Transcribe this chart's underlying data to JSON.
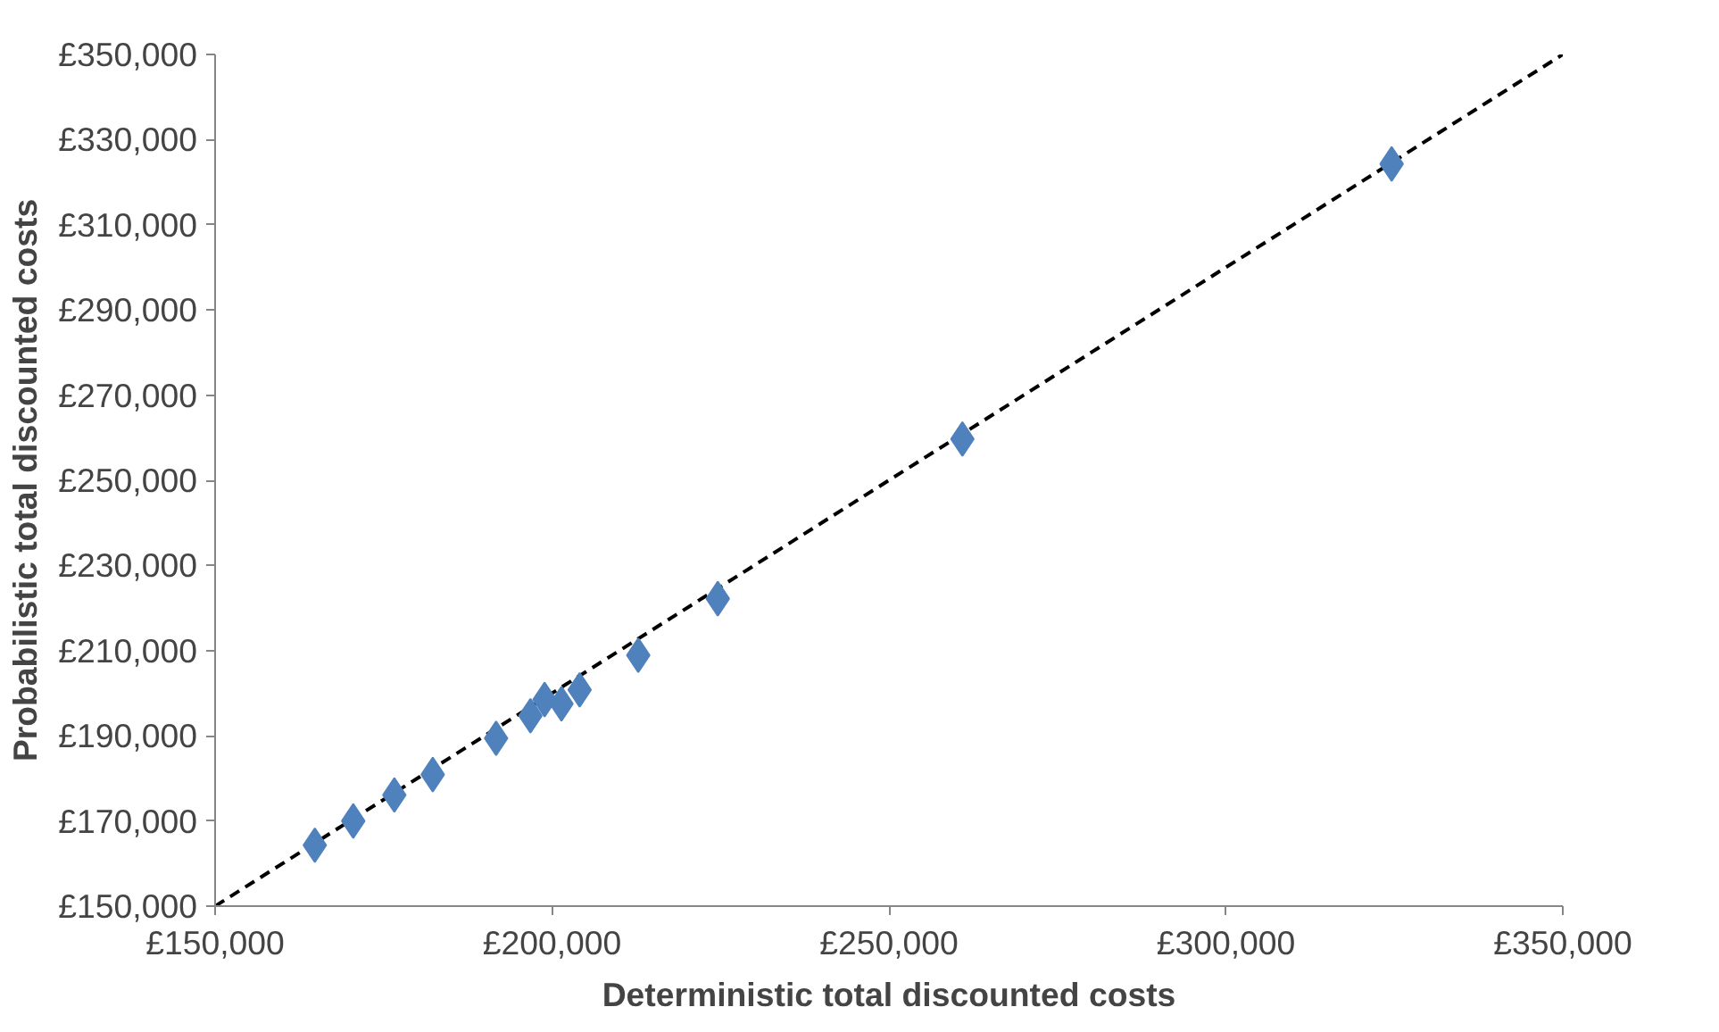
{
  "chart_data": {
    "type": "scatter",
    "xlabel": "Deterministic total discounted costs",
    "ylabel": "Probabilistic total discounted costs",
    "marker": "diamond",
    "grid": false,
    "xlim": [
      150000,
      350000
    ],
    "ylim": [
      150000,
      350000
    ],
    "xticks": [
      {
        "value": 150000,
        "label": "£150,000"
      },
      {
        "value": 200000,
        "label": "£200,000"
      },
      {
        "value": 250000,
        "label": "£250,000"
      },
      {
        "value": 300000,
        "label": "£300,000"
      },
      {
        "value": 350000,
        "label": "£350,000"
      }
    ],
    "yticks": [
      {
        "value": 150000,
        "label": "£150,000"
      },
      {
        "value": 170000,
        "label": "£170,000"
      },
      {
        "value": 190000,
        "label": "£190,000"
      },
      {
        "value": 210000,
        "label": "£210,000"
      },
      {
        "value": 230000,
        "label": "£230,000"
      },
      {
        "value": 250000,
        "label": "£250,000"
      },
      {
        "value": 270000,
        "label": "£270,000"
      },
      {
        "value": 290000,
        "label": "£290,000"
      },
      {
        "value": 310000,
        "label": "£310,000"
      },
      {
        "value": 330000,
        "label": "£330,000"
      },
      {
        "value": 350000,
        "label": "£350,000"
      }
    ],
    "series": [
      {
        "color": "#4f81bd",
        "x": [
          164800,
          170500,
          176600,
          182300,
          191700,
          196800,
          198900,
          201400,
          204100,
          212800,
          224600,
          260900,
          324600
        ],
        "values": [
          164300,
          170000,
          176100,
          180900,
          189400,
          194700,
          198500,
          197500,
          200800,
          208900,
          222200,
          259700,
          324300
        ]
      },
      {
        "type": "line",
        "color": "#000000",
        "line_style": "dashed",
        "marker": "none",
        "x": [
          150000,
          350000
        ],
        "values": [
          150000,
          350000
        ]
      }
    ]
  }
}
